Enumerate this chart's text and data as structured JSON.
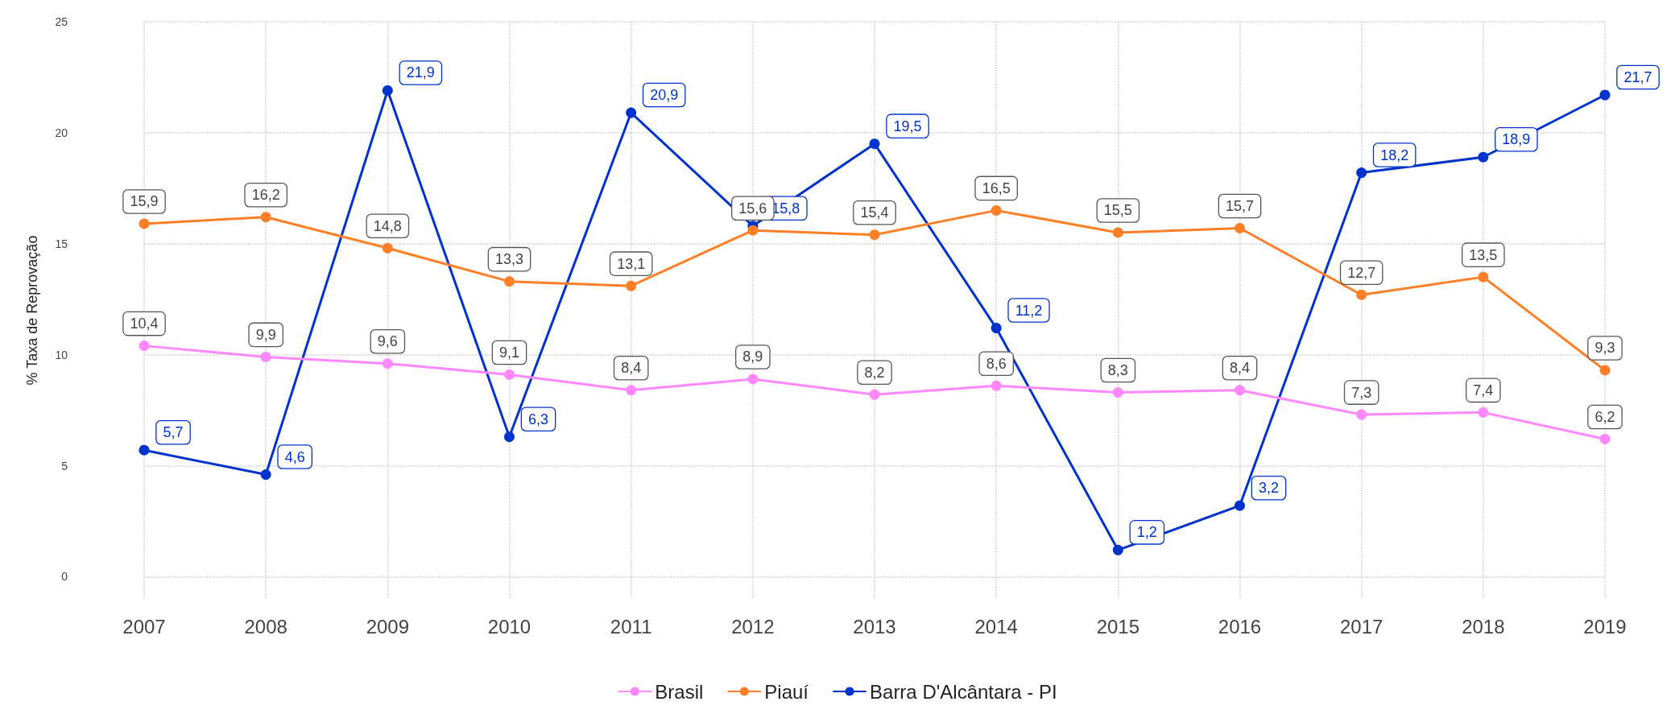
{
  "chart_data": {
    "type": "line",
    "ylabel": "% Taxa de Reprovação",
    "categories": [
      "2007",
      "2008",
      "2009",
      "2010",
      "2011",
      "2012",
      "2013",
      "2014",
      "2015",
      "2016",
      "2017",
      "2018",
      "2019"
    ],
    "series": [
      {
        "name": "Brasil",
        "color": "#ff88ff",
        "values": [
          10.4,
          9.9,
          9.6,
          9.1,
          8.4,
          8.9,
          8.2,
          8.6,
          8.3,
          8.4,
          7.3,
          7.4,
          6.2
        ],
        "value_labels": [
          "10,4",
          "9,9",
          "9,6",
          "9,1",
          "8,4",
          "8,9",
          "8,2",
          "8,6",
          "8,3",
          "8,4",
          "7,3",
          "7,4",
          "6,2"
        ]
      },
      {
        "name": "Piauí",
        "color": "#ff7f27",
        "values": [
          15.9,
          16.2,
          14.8,
          13.3,
          13.1,
          15.6,
          15.4,
          16.5,
          15.5,
          15.7,
          12.7,
          13.5,
          9.3
        ],
        "value_labels": [
          "15,9",
          "16,2",
          "14,8",
          "13,3",
          "13,1",
          "15,6",
          "15,4",
          "16,5",
          "15,5",
          "15,7",
          "12,7",
          "13,5",
          "9,3"
        ]
      },
      {
        "name": "Barra D'Alcântara - PI",
        "color": "#0033cc",
        "values": [
          5.7,
          4.6,
          21.9,
          6.3,
          20.9,
          15.8,
          19.5,
          11.2,
          1.2,
          3.2,
          18.2,
          18.9,
          21.7
        ],
        "value_labels": [
          "5,7",
          "4,6",
          "21,9",
          "6,3",
          "20,9",
          "15,8",
          "19,5",
          "11,2",
          "1,2",
          "3,2",
          "18,2",
          "18,9",
          "21,7"
        ]
      }
    ],
    "ylim": [
      -1,
      25
    ],
    "yticks": [
      0,
      5,
      10,
      15,
      20,
      25
    ],
    "grid": true,
    "legend": "bottom",
    "marker": "circle",
    "line_style": "solid"
  }
}
